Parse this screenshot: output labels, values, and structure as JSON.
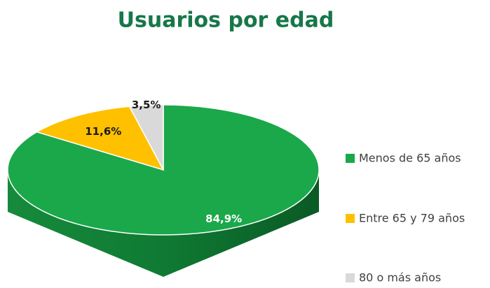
{
  "chart_data": {
    "type": "pie",
    "title": "Usuarios por edad",
    "categories": [
      "Menos de 65 años",
      "Entre 65 y 79 años",
      "80 o más años"
    ],
    "values": [
      84.9,
      11.6,
      3.5
    ],
    "value_labels": [
      "84,9%",
      "11,6%",
      "3,5%"
    ],
    "colors": [
      "#1aa84a",
      "#ffc000",
      "#d9d9d9"
    ],
    "legend": "right"
  }
}
